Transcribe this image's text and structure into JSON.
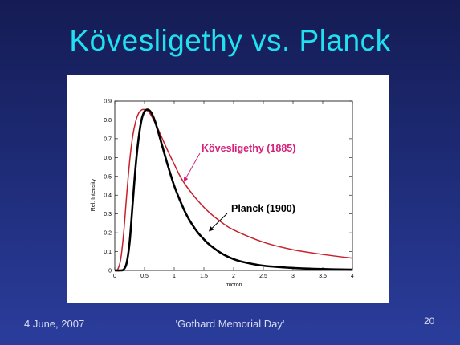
{
  "slide": {
    "title": "Kövesligethy vs. Planck",
    "footer_date": "4 June, 2007",
    "footer_event": "'Gothard Memorial Day'",
    "page_number": "20"
  },
  "chart_data": {
    "type": "line",
    "xlabel": "micron",
    "ylabel": "Rel. Intensity",
    "xlim": [
      0,
      4
    ],
    "ylim": [
      0,
      0.9
    ],
    "xticks": [
      "0",
      "0.5",
      "1",
      "1.5",
      "2",
      "2.5",
      "3",
      "3.5",
      "4"
    ],
    "yticks": [
      "0",
      "0.1",
      "0.2",
      "0.3",
      "0.4",
      "0.5",
      "0.6",
      "0.7",
      "0.8",
      "0.9"
    ],
    "grid": false,
    "series": [
      {
        "name": "Kövesligethy (1885)",
        "color": "#c8202a",
        "label_color": "#d6207a",
        "x": [
          0.0,
          0.05,
          0.1,
          0.15,
          0.2,
          0.25,
          0.3,
          0.35,
          0.4,
          0.45,
          0.5,
          0.55,
          0.6,
          0.7,
          0.8,
          0.9,
          1.0,
          1.1,
          1.2,
          1.4,
          1.6,
          1.8,
          2.0,
          2.5,
          3.0,
          3.5,
          4.0
        ],
        "y": [
          0.0,
          0.006,
          0.06,
          0.2,
          0.4,
          0.58,
          0.71,
          0.79,
          0.835,
          0.853,
          0.855,
          0.848,
          0.83,
          0.77,
          0.7,
          0.63,
          0.565,
          0.5,
          0.45,
          0.37,
          0.305,
          0.255,
          0.215,
          0.15,
          0.11,
          0.085,
          0.065
        ]
      },
      {
        "name": "Planck (1900)",
        "color": "#000000",
        "label_color": "#000000",
        "x": [
          0.0,
          0.1,
          0.15,
          0.2,
          0.25,
          0.3,
          0.35,
          0.4,
          0.45,
          0.5,
          0.55,
          0.6,
          0.65,
          0.7,
          0.8,
          0.9,
          1.0,
          1.1,
          1.2,
          1.3,
          1.4,
          1.5,
          1.6,
          1.8,
          2.0,
          2.2,
          2.5,
          3.0,
          3.5,
          4.0
        ],
        "y": [
          0.0,
          0.0,
          0.005,
          0.04,
          0.15,
          0.35,
          0.55,
          0.7,
          0.8,
          0.845,
          0.855,
          0.845,
          0.815,
          0.77,
          0.66,
          0.55,
          0.45,
          0.37,
          0.3,
          0.245,
          0.2,
          0.165,
          0.135,
          0.09,
          0.06,
          0.042,
          0.025,
          0.013,
          0.007,
          0.004
        ]
      }
    ],
    "annotations": [
      {
        "text": "Kövesligethy (1885)",
        "series": 0
      },
      {
        "text": "Planck (1900)",
        "series": 1
      }
    ]
  }
}
